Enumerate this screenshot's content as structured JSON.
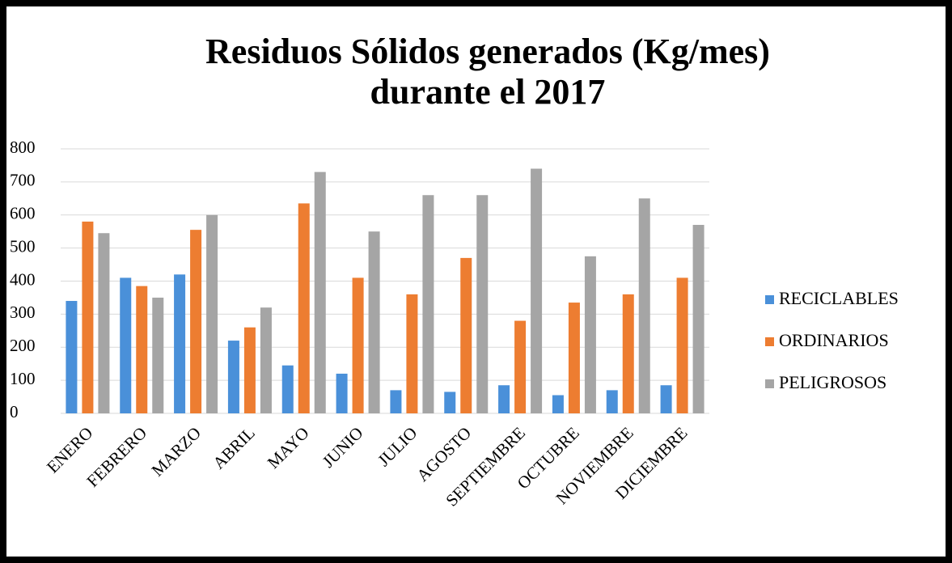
{
  "chart_data": {
    "type": "bar",
    "title": [
      "Residuos Sólidos generados (Kg/mes)",
      "durante el 2017"
    ],
    "categories": [
      "ENERO",
      "FEBRERO",
      "MARZO",
      "ABRIL",
      "MAYO",
      "JUNIO",
      "JULIO",
      "AGOSTO",
      "SEPTIEMBRE",
      "OCTUBRE",
      "NOVIEMBRE",
      "DICIEMBRE"
    ],
    "series": [
      {
        "name": "RECICLABLES",
        "color": "#4a90d9",
        "values": [
          340,
          410,
          420,
          220,
          145,
          120,
          70,
          65,
          85,
          55,
          70,
          85
        ]
      },
      {
        "name": "ORDINARIOS",
        "color": "#ed7d31",
        "values": [
          580,
          385,
          555,
          260,
          635,
          410,
          360,
          470,
          280,
          335,
          360,
          410
        ]
      },
      {
        "name": "PELIGROSOS",
        "color": "#a5a5a5",
        "values": [
          545,
          350,
          600,
          320,
          730,
          550,
          660,
          660,
          740,
          475,
          650,
          570
        ]
      }
    ],
    "ylim": [
      0,
      800
    ],
    "yticks": [
      0,
      100,
      200,
      300,
      400,
      500,
      600,
      700,
      800
    ],
    "grid": true,
    "legend": "right"
  }
}
